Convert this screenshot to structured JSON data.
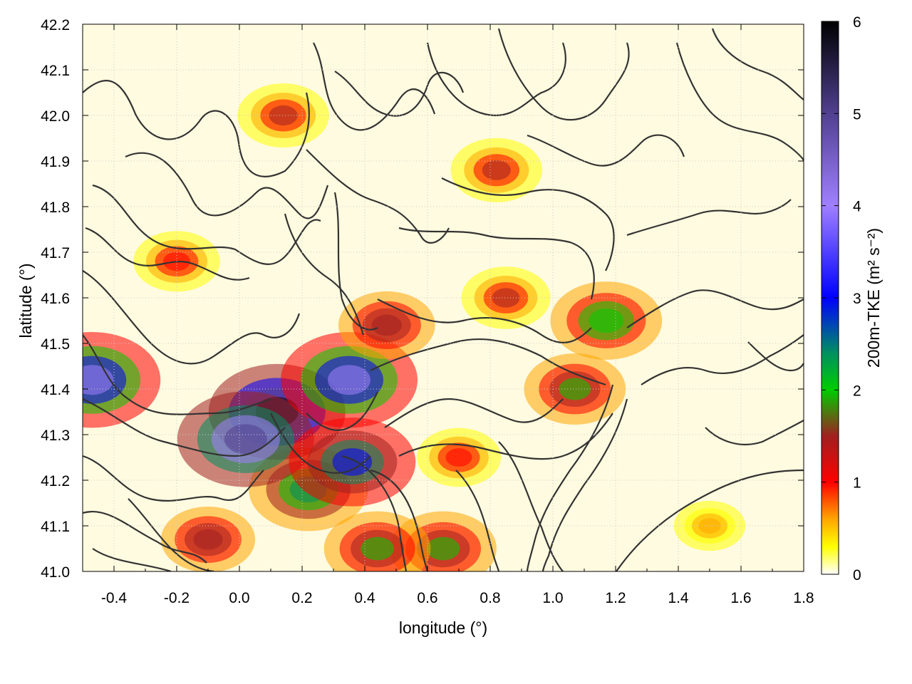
{
  "chart_data": {
    "type": "heatmap",
    "xlabel": "longitude (°)",
    "ylabel": "latitude (°)",
    "colorbar_label": "200m-TKE (m² s⁻²)",
    "xlim": [
      -0.5,
      1.8
    ],
    "ylim": [
      41.0,
      42.2
    ],
    "x_ticks": [
      -0.4,
      -0.2,
      0.0,
      0.2,
      0.4,
      0.6,
      0.8,
      1.0,
      1.2,
      1.4,
      1.6,
      1.8
    ],
    "x_tick_labels": [
      "-0.4",
      "-0.2",
      "0.0",
      "0.2",
      "0.4",
      "0.6",
      "0.8",
      "1.0",
      "1.2",
      "1.4",
      "1.6",
      "1.8"
    ],
    "y_ticks": [
      41.0,
      41.1,
      41.2,
      41.3,
      41.4,
      41.5,
      41.6,
      41.7,
      41.8,
      41.9,
      42.0,
      42.1,
      42.2
    ],
    "y_tick_labels": [
      "41.0",
      "41.1",
      "41.2",
      "41.3",
      "41.4",
      "41.5",
      "41.6",
      "41.7",
      "41.8",
      "41.9",
      "42.0",
      "42.1",
      "42.2"
    ],
    "grid": true,
    "colorbar": {
      "min": 0,
      "max": 6,
      "ticks": [
        0,
        1,
        2,
        3,
        4,
        5,
        6
      ],
      "tick_labels": [
        "0",
        "1",
        "2",
        "3",
        "4",
        "5",
        "6"
      ],
      "stops": [
        {
          "value": 0.0,
          "color": "#ffffff"
        },
        {
          "value": 0.3,
          "color": "#ffff00"
        },
        {
          "value": 0.6,
          "color": "#ffa500"
        },
        {
          "value": 1.0,
          "color": "#ff0000"
        },
        {
          "value": 1.5,
          "color": "#a02020"
        },
        {
          "value": 2.0,
          "color": "#00cc00"
        },
        {
          "value": 2.4,
          "color": "#009060"
        },
        {
          "value": 3.0,
          "color": "#0000ff"
        },
        {
          "value": 4.0,
          "color": "#a080ff"
        },
        {
          "value": 5.0,
          "color": "#504090"
        },
        {
          "value": 6.0,
          "color": "#000000"
        }
      ]
    },
    "tke_hotspots": [
      {
        "lon": 0.22,
        "lat": 41.18,
        "value": 2.3
      },
      {
        "lon": 0.12,
        "lat": 41.35,
        "value": 5.5
      },
      {
        "lon": 0.02,
        "lat": 41.29,
        "value": 4.2
      },
      {
        "lon": 0.35,
        "lat": 41.42,
        "value": 3.4
      },
      {
        "lon": 0.36,
        "lat": 41.24,
        "value": 2.6
      },
      {
        "lon": 1.17,
        "lat": 41.55,
        "value": 2.0
      },
      {
        "lon": 1.07,
        "lat": 41.4,
        "value": 1.6
      },
      {
        "lon": -0.47,
        "lat": 41.42,
        "value": 3.4
      },
      {
        "lon": 0.47,
        "lat": 41.54,
        "value": 1.4
      },
      {
        "lon": 0.14,
        "lat": 42.0,
        "value": 1.2
      },
      {
        "lon": 0.82,
        "lat": 41.88,
        "value": 1.2
      },
      {
        "lon": -0.2,
        "lat": 41.68,
        "value": 1.0
      },
      {
        "lon": 0.85,
        "lat": 41.6,
        "value": 1.1
      },
      {
        "lon": 0.65,
        "lat": 41.05,
        "value": 1.8
      },
      {
        "lon": 0.44,
        "lat": 41.05,
        "value": 1.8
      },
      {
        "lon": -0.1,
        "lat": 41.07,
        "value": 1.3
      },
      {
        "lon": 0.7,
        "lat": 41.25,
        "value": 0.9
      },
      {
        "lon": 1.5,
        "lat": 41.1,
        "value": 0.4
      }
    ],
    "contour_color": "#333333"
  }
}
